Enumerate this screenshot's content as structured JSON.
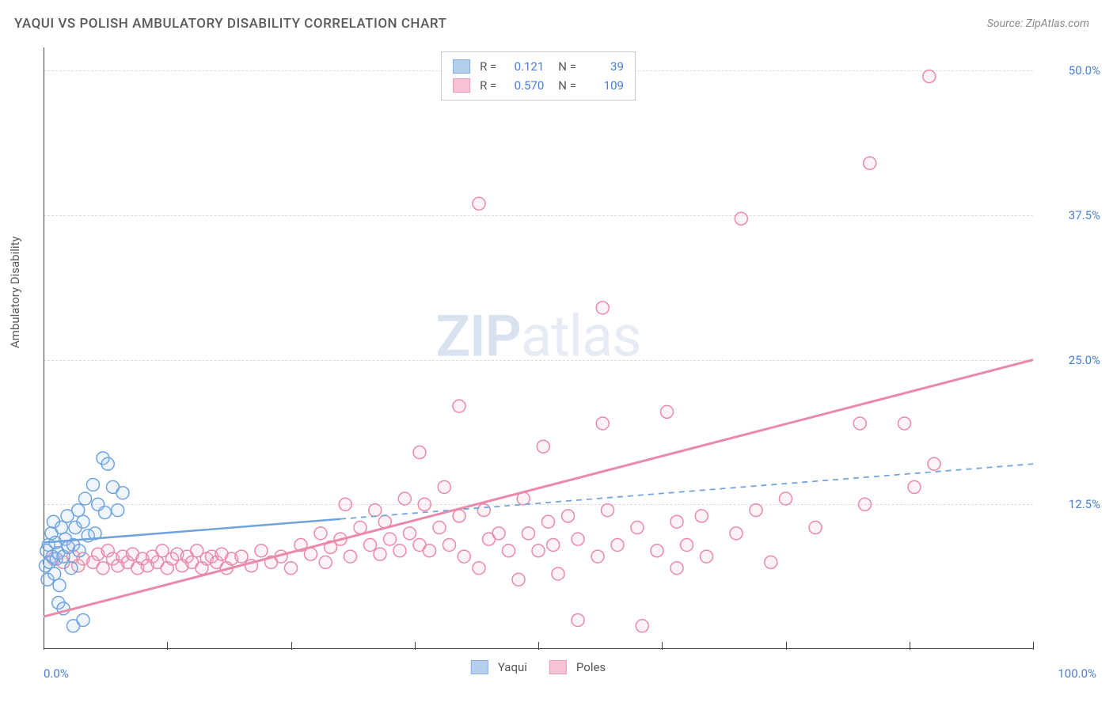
{
  "title": "YAQUI VS POLISH AMBULATORY DISABILITY CORRELATION CHART",
  "source": "Source: ZipAtlas.com",
  "ylabel": "Ambulatory Disability",
  "watermark_zip": "ZIP",
  "watermark_atlas": "atlas",
  "chart": {
    "type": "scatter",
    "xlim": [
      0,
      100
    ],
    "ylim": [
      0,
      52
    ],
    "xtick_positions": [
      0,
      12.5,
      25,
      37.5,
      50,
      62.5,
      75,
      87.5,
      100
    ],
    "yticks": [
      12.5,
      25.0,
      37.5,
      50.0
    ],
    "ytick_labels": [
      "12.5%",
      "25.0%",
      "37.5%",
      "50.0%"
    ],
    "xmin_label": "0.0%",
    "xmax_label": "100.0%",
    "background_color": "#ffffff",
    "grid_color": "#dcdcdc",
    "axis_color": "#444444",
    "marker_radius": 8,
    "marker_stroke_width": 1.5,
    "marker_fill_opacity": 0.18,
    "series": [
      {
        "name": "Yaqui",
        "color_stroke": "#6fa3e0",
        "color_fill": "#a9c8ec",
        "r": "0.121",
        "n": "39",
        "regression": {
          "x1": 0,
          "y1": 9.2,
          "x2": 100,
          "y2": 16.0,
          "solid_until_x": 30,
          "width": 2.5
        },
        "points": [
          [
            0.2,
            7.2
          ],
          [
            0.3,
            8.5
          ],
          [
            0.4,
            6.0
          ],
          [
            0.5,
            9.0
          ],
          [
            0.6,
            7.5
          ],
          [
            0.8,
            10.0
          ],
          [
            0.9,
            8.0
          ],
          [
            1.0,
            11.0
          ],
          [
            1.1,
            6.5
          ],
          [
            1.2,
            9.2
          ],
          [
            1.3,
            7.8
          ],
          [
            1.5,
            8.3
          ],
          [
            1.6,
            5.5
          ],
          [
            1.8,
            10.5
          ],
          [
            2.0,
            8.0
          ],
          [
            2.2,
            9.5
          ],
          [
            2.4,
            11.5
          ],
          [
            2.5,
            8.8
          ],
          [
            2.8,
            7.0
          ],
          [
            3.0,
            9.0
          ],
          [
            3.2,
            10.5
          ],
          [
            3.5,
            12.0
          ],
          [
            3.6,
            8.5
          ],
          [
            4.0,
            11.0
          ],
          [
            4.2,
            13.0
          ],
          [
            4.5,
            9.8
          ],
          [
            5.0,
            14.2
          ],
          [
            5.2,
            10.0
          ],
          [
            5.5,
            12.5
          ],
          [
            6.0,
            16.5
          ],
          [
            6.2,
            11.8
          ],
          [
            6.5,
            16.0
          ],
          [
            7.0,
            14.0
          ],
          [
            7.5,
            12.0
          ],
          [
            8.0,
            13.5
          ],
          [
            3.0,
            2.0
          ],
          [
            4.0,
            2.5
          ],
          [
            1.5,
            4.0
          ],
          [
            2.0,
            3.5
          ]
        ]
      },
      {
        "name": "Poles",
        "color_stroke": "#e98aa6",
        "color_fill": "#f5b9cb",
        "r": "0.570",
        "n": "109",
        "regression": {
          "x1": 0,
          "y1": 2.8,
          "x2": 100,
          "y2": 25.0,
          "solid_until_x": 100,
          "width": 3
        },
        "points": [
          [
            1,
            7.8
          ],
          [
            2,
            7.5
          ],
          [
            3,
            8.0
          ],
          [
            3.5,
            7.2
          ],
          [
            4,
            7.8
          ],
          [
            5,
            7.5
          ],
          [
            5.5,
            8.2
          ],
          [
            6,
            7.0
          ],
          [
            6.5,
            8.5
          ],
          [
            7,
            7.8
          ],
          [
            7.5,
            7.2
          ],
          [
            8,
            8.0
          ],
          [
            8.5,
            7.5
          ],
          [
            9,
            8.2
          ],
          [
            9.5,
            7.0
          ],
          [
            10,
            7.8
          ],
          [
            10.5,
            7.2
          ],
          [
            11,
            8.0
          ],
          [
            11.5,
            7.5
          ],
          [
            12,
            8.5
          ],
          [
            12.5,
            7.0
          ],
          [
            13,
            7.8
          ],
          [
            13.5,
            8.2
          ],
          [
            14,
            7.2
          ],
          [
            14.5,
            8.0
          ],
          [
            15,
            7.5
          ],
          [
            15.5,
            8.5
          ],
          [
            16,
            7.0
          ],
          [
            16.5,
            7.8
          ],
          [
            17,
            8.0
          ],
          [
            17.5,
            7.5
          ],
          [
            18,
            8.2
          ],
          [
            18.5,
            7.0
          ],
          [
            19,
            7.8
          ],
          [
            20,
            8.0
          ],
          [
            21,
            7.2
          ],
          [
            22,
            8.5
          ],
          [
            23,
            7.5
          ],
          [
            24,
            8.0
          ],
          [
            25,
            7.0
          ],
          [
            26,
            9.0
          ],
          [
            27,
            8.2
          ],
          [
            28,
            10.0
          ],
          [
            28.5,
            7.5
          ],
          [
            29,
            8.8
          ],
          [
            30,
            9.5
          ],
          [
            30.5,
            12.5
          ],
          [
            31,
            8.0
          ],
          [
            32,
            10.5
          ],
          [
            33,
            9.0
          ],
          [
            33.5,
            12.0
          ],
          [
            34,
            8.2
          ],
          [
            34.5,
            11.0
          ],
          [
            35,
            9.5
          ],
          [
            36,
            8.5
          ],
          [
            36.5,
            13.0
          ],
          [
            37,
            10.0
          ],
          [
            38,
            9.0
          ],
          [
            38.5,
            12.5
          ],
          [
            39,
            8.5
          ],
          [
            38,
            17.0
          ],
          [
            40,
            10.5
          ],
          [
            40.5,
            14.0
          ],
          [
            41,
            9.0
          ],
          [
            42,
            11.5
          ],
          [
            42.5,
            8.0
          ],
          [
            42,
            21.0
          ],
          [
            44,
            7.0
          ],
          [
            44.5,
            12.0
          ],
          [
            45,
            9.5
          ],
          [
            46,
            10.0
          ],
          [
            47,
            8.5
          ],
          [
            48,
            6.0
          ],
          [
            48.5,
            13.0
          ],
          [
            44,
            38.5
          ],
          [
            49,
            10.0
          ],
          [
            50,
            8.5
          ],
          [
            50.5,
            17.5
          ],
          [
            51,
            11.0
          ],
          [
            51.5,
            9.0
          ],
          [
            52,
            6.5
          ],
          [
            54,
            2.5
          ],
          [
            53,
            11.5
          ],
          [
            54,
            9.5
          ],
          [
            56,
            8.0
          ],
          [
            56.5,
            19.5
          ],
          [
            57,
            12.0
          ],
          [
            58,
            9.0
          ],
          [
            56.5,
            29.5
          ],
          [
            60,
            10.5
          ],
          [
            60.5,
            2.0
          ],
          [
            62,
            8.5
          ],
          [
            63,
            20.5
          ],
          [
            64,
            11.0
          ],
          [
            65,
            9.0
          ],
          [
            66.5,
            11.5
          ],
          [
            67,
            8.0
          ],
          [
            70,
            10.0
          ],
          [
            70.5,
            37.2
          ],
          [
            72,
            12.0
          ],
          [
            73.5,
            7.5
          ],
          [
            75,
            13.0
          ],
          [
            83.5,
            42.0
          ],
          [
            78,
            10.5
          ],
          [
            82.5,
            19.5
          ],
          [
            83,
            12.5
          ],
          [
            87,
            19.5
          ],
          [
            89.5,
            49.5
          ],
          [
            88,
            14.0
          ],
          [
            90,
            16.0
          ],
          [
            64,
            7.0
          ]
        ]
      }
    ]
  },
  "legend_top_label_r": "R =",
  "legend_top_label_n": "N =",
  "legend_bottom": [
    "Yaqui",
    "Poles"
  ]
}
